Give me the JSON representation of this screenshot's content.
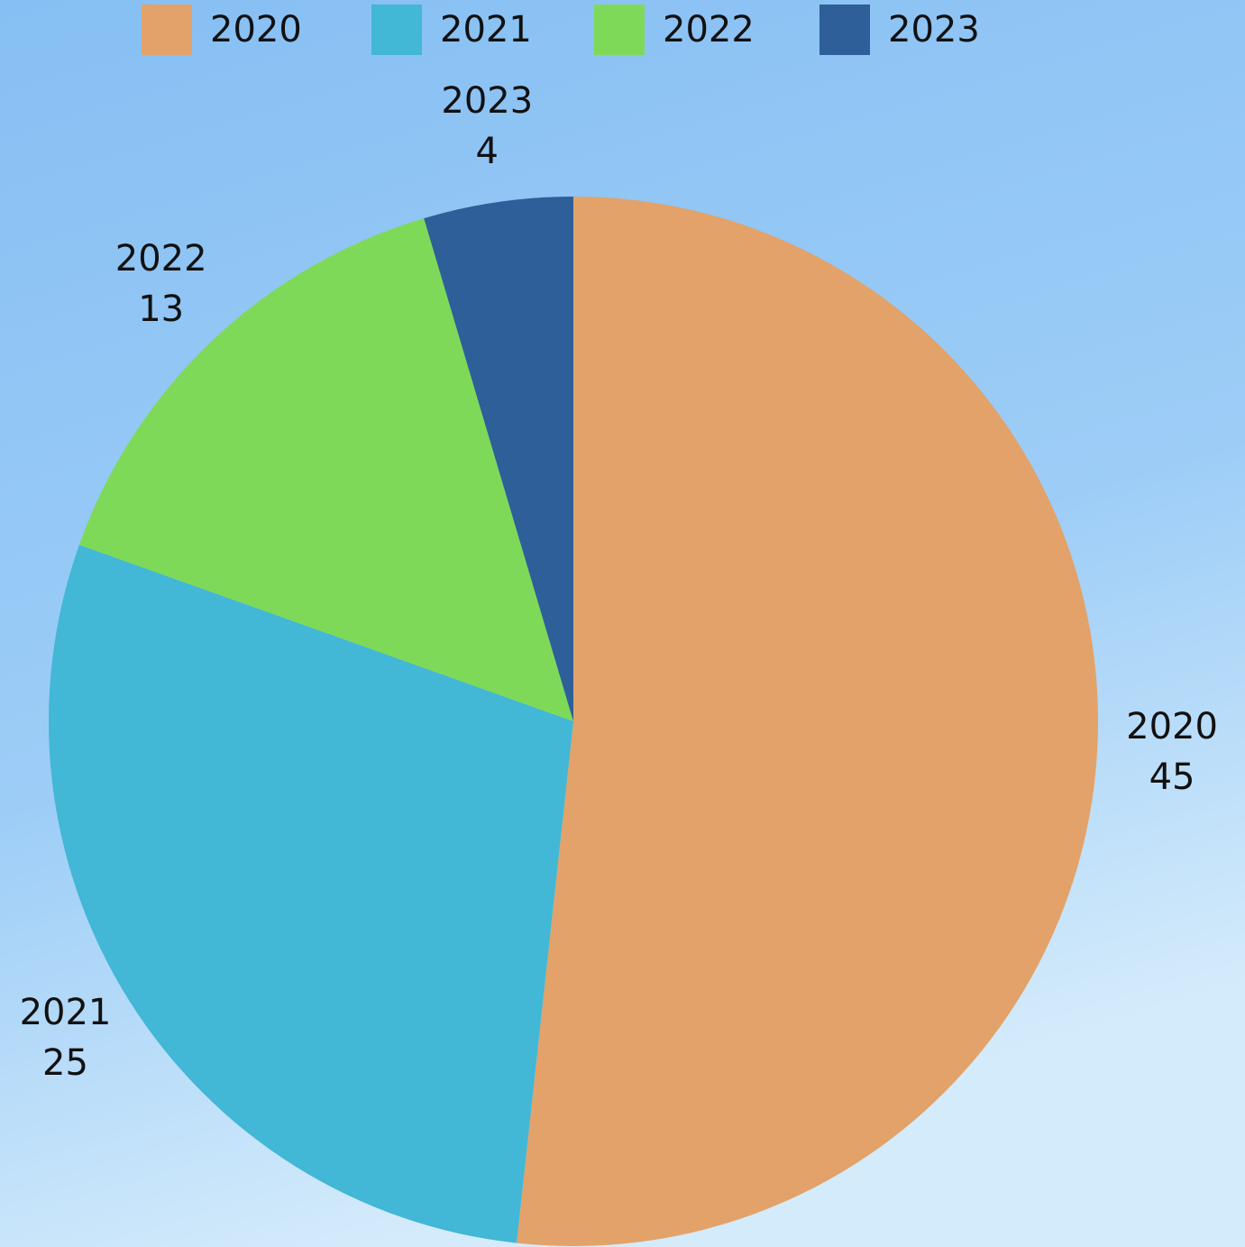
{
  "chart_data": {
    "type": "pie",
    "categories": [
      "2020",
      "2021",
      "2022",
      "2023"
    ],
    "values": [
      45,
      25,
      13,
      4
    ],
    "colors": [
      "#e2a269",
      "#42b7d6",
      "#7fd958",
      "#2e5f98"
    ],
    "legend": "top"
  }
}
